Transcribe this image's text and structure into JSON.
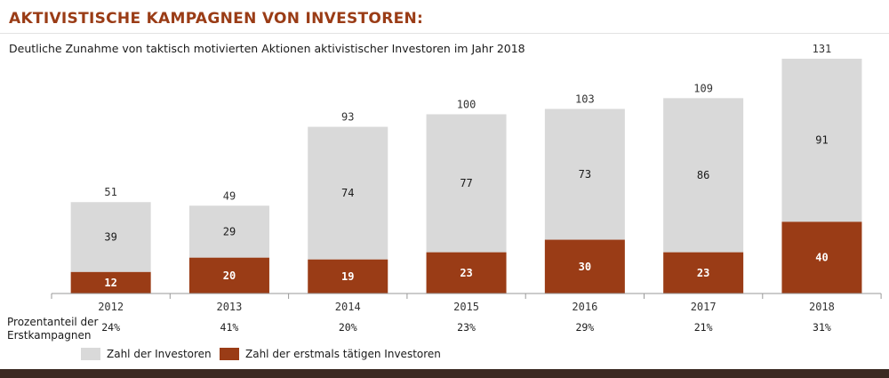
{
  "header": {
    "title": "AKTIVISTISCHE KAMPAGNEN VON INVESTOREN:",
    "subtitle": "Deutliche Zunahme von taktisch motivierten Aktionen aktivistischer Investoren im Jahr 2018"
  },
  "colors": {
    "investors": "#d9d9d9",
    "first_time": "#9a3c16",
    "title": "#9a3c16"
  },
  "chart_data": {
    "type": "bar",
    "stacked": true,
    "categories": [
      "2012",
      "2013",
      "2014",
      "2015",
      "2016",
      "2017",
      "2018"
    ],
    "series": [
      {
        "name": "Zahl der erstmals tätigen Investoren",
        "values": [
          12,
          20,
          19,
          23,
          30,
          23,
          40
        ]
      },
      {
        "name": "",
        "values": [
          39,
          29,
          74,
          77,
          73,
          86,
          91
        ]
      }
    ],
    "totals": [
      51,
      49,
      93,
      100,
      103,
      109,
      131
    ],
    "share_label": "Prozentanteil der Erstkampagnen",
    "share_values": [
      "24%",
      "41%",
      "20%",
      "23%",
      "29%",
      "21%",
      "31%"
    ],
    "ylim": [
      0,
      131
    ],
    "grid": false,
    "legend": {
      "position": "bottom-left",
      "entries": [
        "Zahl der Investoren",
        "Zahl der erstmals tätigen Investoren"
      ]
    }
  }
}
